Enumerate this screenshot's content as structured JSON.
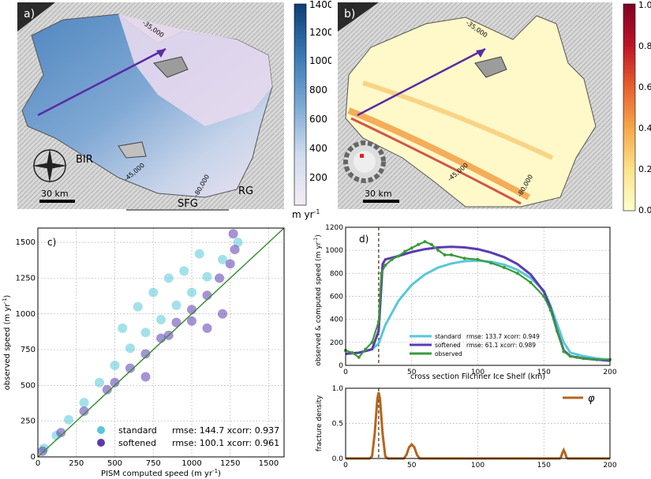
{
  "panels": {
    "a": {
      "label": "a)",
      "annotations": [
        "BIR",
        "SFG",
        "RG"
      ],
      "scale_bar": "30 km",
      "contour_labels": [
        "-35,000",
        "-45,000",
        "-80,000"
      ],
      "colorbar": {
        "ticks": [
          "1400",
          "1200",
          "1000",
          "800",
          "600",
          "400",
          "200"
        ],
        "unit": "m yr",
        "unit_exp": "-1",
        "min": 0,
        "max": 1400,
        "colors": [
          "#f2e6f2",
          "#c9d8ec",
          "#6f9fcf",
          "#2e6aa3",
          "#0e3f74"
        ]
      }
    },
    "b": {
      "label": "b)",
      "scale_bar": "30 km",
      "contour_labels": [
        "-35,000",
        "-45,000",
        "-80,000"
      ],
      "colorbar": {
        "ticks": [
          "1.0",
          "0.8",
          "0.6",
          "0.4",
          "0.2",
          "0.0"
        ],
        "min": 0,
        "max": 1,
        "colors": [
          "#ffffcc",
          "#fde38a",
          "#f7a64b",
          "#e85f2e",
          "#bd1425",
          "#800026"
        ]
      }
    }
  },
  "chart_data": [
    {
      "id": "c",
      "type": "scatter",
      "label": "c)",
      "xlabel": "PISM computed speed (m yr",
      "xlabel_exp": "-1",
      "xlabel_tail": ")",
      "ylabel": "observed speed (m yr",
      "ylabel_exp": "-1",
      "ylabel_tail": ")",
      "xlim": [
        0,
        1600
      ],
      "ylim": [
        0,
        1600
      ],
      "xticks": [
        0,
        250,
        500,
        750,
        1000,
        1250,
        1500
      ],
      "yticks": [
        0,
        250,
        500,
        750,
        1000,
        1250,
        1500
      ],
      "grid": true,
      "legend_position": "lower-right",
      "identity_line": {
        "color": "#3a8f3a"
      },
      "series": [
        {
          "name": "standard",
          "stat": "rmse: 144.7   xcorr: 0.937",
          "color": "#58c8d8",
          "points": [
            [
              40,
              60
            ],
            [
              120,
              150
            ],
            [
              200,
              260
            ],
            [
              300,
              380
            ],
            [
              400,
              520
            ],
            [
              500,
              640
            ],
            [
              600,
              760
            ],
            [
              700,
              870
            ],
            [
              800,
              960
            ],
            [
              900,
              1060
            ],
            [
              1000,
              1150
            ],
            [
              1100,
              1260
            ],
            [
              1200,
              1380
            ],
            [
              1300,
              1500
            ],
            [
              950,
              1300
            ],
            [
              1050,
              1420
            ],
            [
              850,
              1250
            ],
            [
              750,
              1150
            ],
            [
              650,
              1050
            ],
            [
              550,
              900
            ]
          ]
        },
        {
          "name": "softened",
          "stat": "rmse: 100.1   xcorr: 0.961",
          "color": "#5b3ab0",
          "points": [
            [
              30,
              40
            ],
            [
              150,
              170
            ],
            [
              300,
              320
            ],
            [
              450,
              470
            ],
            [
              600,
              620
            ],
            [
              700,
              720
            ],
            [
              800,
              830
            ],
            [
              900,
              940
            ],
            [
              1000,
              1030
            ],
            [
              1100,
              1130
            ],
            [
              1180,
              1250
            ],
            [
              1250,
              1350
            ],
            [
              1280,
              1450
            ],
            [
              1270,
              1560
            ],
            [
              1200,
              1000
            ],
            [
              1100,
              900
            ],
            [
              1000,
              950
            ],
            [
              850,
              850
            ],
            [
              700,
              560
            ],
            [
              500,
              520
            ]
          ]
        }
      ]
    },
    {
      "id": "d",
      "type": "line",
      "label": "d)",
      "xlabel": "cross section Filchner Ice Shelf (km)",
      "ylabel": "observed & computed speed (m yr",
      "ylabel_exp": "-1",
      "ylabel_tail": ")",
      "xlim": [
        0,
        200
      ],
      "ylim": [
        0,
        1200
      ],
      "xticks": [
        0,
        50,
        100,
        150,
        200
      ],
      "yticks": [
        0,
        200,
        400,
        600,
        800,
        1000,
        1200
      ],
      "grid": true,
      "legend_position": "lower-center",
      "marker_line_x": 25,
      "series": [
        {
          "name": "standard",
          "stat": "rmse: 133.7   xcorr: 0.949",
          "color": "#58c8d8",
          "x": [
            0,
            10,
            20,
            25,
            30,
            40,
            50,
            60,
            70,
            80,
            90,
            100,
            110,
            120,
            130,
            140,
            150,
            155,
            160,
            165,
            170,
            180,
            190,
            200
          ],
          "y": [
            100,
            110,
            140,
            190,
            350,
            560,
            700,
            790,
            850,
            885,
            905,
            910,
            900,
            875,
            830,
            760,
            650,
            520,
            360,
            200,
            110,
            80,
            60,
            50
          ]
        },
        {
          "name": "softened",
          "stat": "rmse: 61.1   xcorr: 0.989",
          "color": "#5b3ab0",
          "x": [
            0,
            10,
            20,
            25,
            28,
            30,
            40,
            50,
            60,
            70,
            80,
            90,
            100,
            110,
            120,
            130,
            140,
            150,
            155,
            160,
            165,
            170,
            180,
            190,
            200
          ],
          "y": [
            100,
            110,
            140,
            300,
            880,
            920,
            950,
            985,
            1010,
            1025,
            1030,
            1025,
            1010,
            980,
            940,
            880,
            790,
            640,
            500,
            300,
            130,
            80,
            60,
            50,
            40
          ]
        },
        {
          "name": "observed",
          "color": "#3a9a3a",
          "marker": "dot",
          "x": [
            0,
            5,
            10,
            15,
            20,
            25,
            27,
            30,
            35,
            40,
            45,
            50,
            55,
            60,
            65,
            70,
            75,
            80,
            90,
            100,
            110,
            120,
            130,
            140,
            150,
            155,
            160,
            165,
            170,
            175,
            180,
            190,
            200
          ],
          "y": [
            130,
            110,
            70,
            140,
            200,
            380,
            800,
            870,
            920,
            950,
            990,
            1020,
            1050,
            1075,
            1050,
            1000,
            960,
            960,
            930,
            920,
            890,
            850,
            800,
            720,
            600,
            480,
            300,
            120,
            80,
            70,
            60,
            50,
            50
          ]
        }
      ]
    },
    {
      "id": "e",
      "type": "line",
      "ylabel": "fracture density",
      "xlim": [
        0,
        200
      ],
      "ylim": [
        0,
        1.0
      ],
      "xticks": [
        0,
        50,
        100,
        150,
        200
      ],
      "yticks": [
        0.0,
        0.5,
        1.0
      ],
      "grid": true,
      "legend_position": "top-right",
      "marker_line_x": 25,
      "series": [
        {
          "name": "φ",
          "color": "#b5651d",
          "x": [
            0,
            18,
            20,
            22,
            24,
            25,
            26,
            28,
            30,
            32,
            44,
            46,
            48,
            50,
            52,
            54,
            56,
            162,
            163,
            164,
            165,
            166,
            167,
            168,
            200
          ],
          "y": [
            0,
            0,
            0.03,
            0.35,
            0.85,
            0.94,
            0.85,
            0.35,
            0.03,
            0,
            0,
            0.05,
            0.16,
            0.2,
            0.16,
            0.05,
            0,
            0,
            0.02,
            0.08,
            0.12,
            0.08,
            0.02,
            0,
            0
          ]
        }
      ]
    }
  ]
}
